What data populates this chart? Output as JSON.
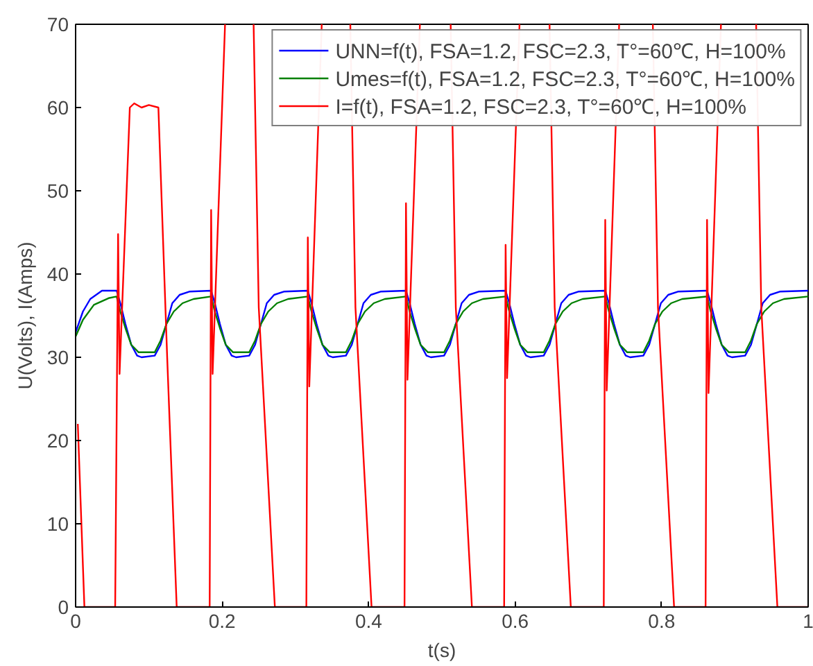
{
  "chart_data": {
    "type": "line",
    "xlabel": "t(s)",
    "ylabel": "U(Volts), I(Amps)",
    "xlim": [
      0,
      1
    ],
    "ylim": [
      0,
      70
    ],
    "xticks": [
      0,
      0.2,
      0.4,
      0.6,
      0.8,
      1
    ],
    "yticks": [
      0,
      10,
      20,
      30,
      40,
      50,
      60,
      70
    ],
    "grid": false,
    "legend": "top right",
    "marker": "none",
    "line_style": "solid",
    "series": [
      {
        "name": "UNN=f(t), FSA=1.2, FSC=2.3, T°=60℃, H=100%",
        "color": "#0000ff",
        "x": [
          0,
          0.01,
          0.02,
          0.036,
          0.056,
          0.061,
          0.068,
          0.076,
          0.084,
          0.09,
          0.108,
          0.116,
          0.124,
          0.132,
          0.142,
          0.156,
          0.185,
          0.19,
          0.197,
          0.205,
          0.213,
          0.219,
          0.237,
          0.245,
          0.253,
          0.261,
          0.271,
          0.285,
          0.317,
          0.322,
          0.329,
          0.337,
          0.345,
          0.351,
          0.369,
          0.377,
          0.385,
          0.393,
          0.403,
          0.417,
          0.451,
          0.456,
          0.463,
          0.471,
          0.479,
          0.485,
          0.503,
          0.511,
          0.519,
          0.527,
          0.537,
          0.551,
          0.587,
          0.592,
          0.599,
          0.607,
          0.615,
          0.621,
          0.639,
          0.647,
          0.655,
          0.663,
          0.673,
          0.687,
          0.723,
          0.728,
          0.735,
          0.743,
          0.751,
          0.757,
          0.775,
          0.783,
          0.791,
          0.799,
          0.809,
          0.823,
          0.862,
          0.867,
          0.874,
          0.882,
          0.89,
          0.896,
          0.914,
          0.922,
          0.93,
          0.938,
          0.948,
          0.962,
          1.0
        ],
        "values": [
          33,
          35.5,
          37,
          38,
          38,
          36.5,
          34,
          31.5,
          30.2,
          30,
          30.2,
          31.5,
          34,
          36.5,
          37.5,
          37.9,
          38,
          36.5,
          34,
          31.5,
          30.2,
          30,
          30.2,
          31.5,
          34,
          36.5,
          37.5,
          37.9,
          38,
          36.5,
          34,
          31.5,
          30.2,
          30,
          30.2,
          31.5,
          34,
          36.5,
          37.5,
          37.9,
          38,
          36.5,
          34,
          31.5,
          30.2,
          30,
          30.2,
          31.5,
          34,
          36.5,
          37.5,
          37.9,
          38,
          36.5,
          34,
          31.5,
          30.2,
          30,
          30.2,
          31.5,
          34,
          36.5,
          37.5,
          37.9,
          38,
          36.5,
          34,
          31.5,
          30.2,
          30,
          30.2,
          31.5,
          34,
          36.5,
          37.5,
          37.9,
          38,
          36.5,
          34,
          31.5,
          30.2,
          30,
          30.2,
          31.5,
          34,
          36.5,
          37.5,
          37.9,
          38
        ]
      },
      {
        "name": "Umes=f(t), FSA=1.2, FSC=2.3, T°=60℃, H=100%",
        "color": "#008000",
        "x": [
          0,
          0.01,
          0.025,
          0.045,
          0.056,
          0.061,
          0.068,
          0.076,
          0.086,
          0.108,
          0.116,
          0.124,
          0.134,
          0.146,
          0.161,
          0.185,
          0.19,
          0.197,
          0.205,
          0.215,
          0.237,
          0.245,
          0.253,
          0.263,
          0.275,
          0.29,
          0.317,
          0.322,
          0.329,
          0.337,
          0.347,
          0.369,
          0.377,
          0.385,
          0.395,
          0.407,
          0.422,
          0.451,
          0.456,
          0.463,
          0.471,
          0.481,
          0.503,
          0.511,
          0.519,
          0.529,
          0.541,
          0.556,
          0.587,
          0.592,
          0.599,
          0.607,
          0.617,
          0.639,
          0.647,
          0.655,
          0.665,
          0.677,
          0.692,
          0.723,
          0.728,
          0.735,
          0.743,
          0.753,
          0.775,
          0.783,
          0.791,
          0.801,
          0.813,
          0.828,
          0.862,
          0.867,
          0.874,
          0.882,
          0.892,
          0.914,
          0.922,
          0.93,
          0.94,
          0.952,
          0.967,
          1.0
        ],
        "values": [
          32.5,
          34.5,
          36.3,
          37.1,
          37.3,
          35.5,
          33.5,
          31.5,
          30.6,
          30.6,
          32,
          34,
          35.5,
          36.5,
          37,
          37.3,
          35.5,
          33.5,
          31.5,
          30.6,
          30.6,
          32,
          34,
          35.5,
          36.5,
          37,
          37.3,
          35.5,
          33.5,
          31.5,
          30.6,
          30.6,
          32,
          34,
          35.5,
          36.5,
          37,
          37.3,
          35.5,
          33.5,
          31.5,
          30.6,
          30.6,
          32,
          34,
          35.5,
          36.5,
          37,
          37.3,
          35.5,
          33.5,
          31.5,
          30.6,
          30.6,
          32,
          34,
          35.5,
          36.5,
          37,
          37.3,
          35.5,
          33.5,
          31.5,
          30.6,
          30.6,
          32,
          34,
          35.5,
          36.5,
          37,
          37.3,
          35.5,
          33.5,
          31.5,
          30.6,
          30.6,
          32,
          34,
          35.5,
          36.5,
          37,
          37.3
        ]
      },
      {
        "name": "I=f(t), FSA=1.2, FSC=2.3, T°=60℃, H=100%",
        "color": "#ff0000",
        "x": [
          0.003,
          0.012,
          0.054,
          0.058,
          0.06,
          0.074,
          0.08,
          0.09,
          0.1,
          0.113,
          0.125,
          0.138,
          0.183,
          0.185,
          0.187,
          0.204,
          0.22,
          0.243,
          0.25,
          0.272,
          0.315,
          0.317,
          0.319,
          0.336,
          0.355,
          0.375,
          0.382,
          0.404,
          0.449,
          0.451,
          0.453,
          0.47,
          0.49,
          0.512,
          0.519,
          0.541,
          0.585,
          0.587,
          0.589,
          0.606,
          0.625,
          0.647,
          0.654,
          0.676,
          0.721,
          0.723,
          0.725,
          0.742,
          0.765,
          0.788,
          0.795,
          0.817,
          0.86,
          0.862,
          0.864,
          0.881,
          0.905,
          0.929,
          0.936,
          0.958,
          1.0
        ],
        "values": [
          22,
          0,
          0,
          44.8,
          28,
          60,
          60.5,
          60,
          60.3,
          60,
          30,
          0,
          0,
          47.7,
          28,
          70,
          null,
          70,
          36,
          0,
          0,
          44.4,
          26.5,
          70,
          null,
          70,
          36,
          0,
          0,
          48.5,
          27.3,
          70,
          null,
          70,
          36,
          0,
          0,
          43.5,
          27.5,
          70,
          null,
          70,
          36,
          0,
          0,
          46.5,
          26,
          70,
          null,
          70,
          36,
          0,
          0,
          46.5,
          25.7,
          70,
          null,
          70,
          36,
          0,
          0
        ]
      }
    ]
  }
}
